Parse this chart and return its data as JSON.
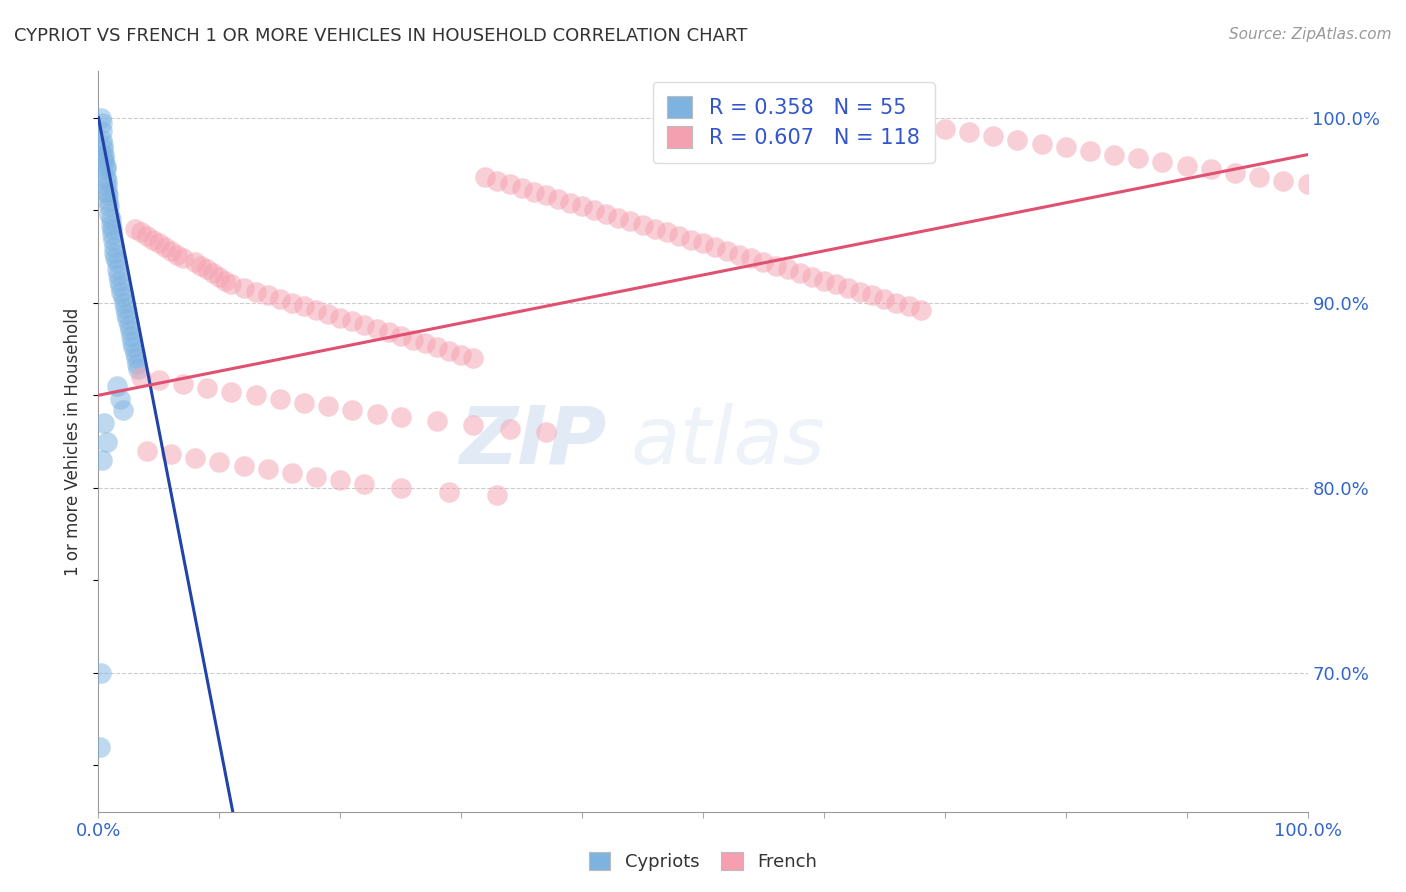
{
  "title": "CYPRIOT VS FRENCH 1 OR MORE VEHICLES IN HOUSEHOLD CORRELATION CHART",
  "source": "Source: ZipAtlas.com",
  "ylabel": "1 or more Vehicles in Household",
  "xmin": 0.0,
  "xmax": 1.0,
  "ymin": 0.625,
  "ymax": 1.025,
  "yticks": [
    0.7,
    0.8,
    0.9,
    1.0
  ],
  "ytick_labels": [
    "70.0%",
    "80.0%",
    "90.0%",
    "100.0%"
  ],
  "xticks": [
    0.0,
    0.1,
    0.2,
    0.3,
    0.4,
    0.5,
    0.6,
    0.7,
    0.8,
    0.9,
    1.0
  ],
  "xtick_labels": [
    "0.0%",
    "",
    "",
    "",
    "",
    "",
    "",
    "",
    "",
    "",
    "100.0%"
  ],
  "cypriot_color": "#7EB3E0",
  "french_color": "#F5A0B0",
  "cypriot_line_color": "#2244AA",
  "french_line_color": "#E05070",
  "cypriot_R": 0.358,
  "cypriot_N": 55,
  "french_R": 0.607,
  "french_N": 118,
  "watermark_zip": "ZIP",
  "watermark_atlas": "atlas",
  "cypriot_x": [
    0.002,
    0.003,
    0.003,
    0.003,
    0.004,
    0.004,
    0.005,
    0.005,
    0.005,
    0.006,
    0.006,
    0.006,
    0.007,
    0.007,
    0.007,
    0.008,
    0.008,
    0.009,
    0.009,
    0.01,
    0.01,
    0.011,
    0.011,
    0.012,
    0.013,
    0.013,
    0.014,
    0.015,
    0.015,
    0.016,
    0.017,
    0.018,
    0.019,
    0.02,
    0.021,
    0.022,
    0.023,
    0.024,
    0.025,
    0.026,
    0.027,
    0.028,
    0.029,
    0.03,
    0.031,
    0.032,
    0.033,
    0.015,
    0.018,
    0.02,
    0.005,
    0.007,
    0.003,
    0.002,
    0.001
  ],
  "cypriot_y": [
    1.0,
    0.997,
    0.993,
    0.988,
    0.985,
    0.983,
    0.98,
    0.978,
    0.976,
    0.974,
    0.972,
    0.968,
    0.966,
    0.963,
    0.96,
    0.958,
    0.955,
    0.952,
    0.948,
    0.945,
    0.942,
    0.94,
    0.937,
    0.934,
    0.93,
    0.927,
    0.924,
    0.922,
    0.918,
    0.915,
    0.912,
    0.909,
    0.906,
    0.903,
    0.9,
    0.897,
    0.894,
    0.891,
    0.888,
    0.885,
    0.882,
    0.879,
    0.876,
    0.873,
    0.87,
    0.867,
    0.864,
    0.855,
    0.848,
    0.842,
    0.835,
    0.825,
    0.815,
    0.7,
    0.66
  ],
  "french_x": [
    0.03,
    0.035,
    0.04,
    0.045,
    0.05,
    0.055,
    0.06,
    0.065,
    0.07,
    0.08,
    0.085,
    0.09,
    0.095,
    0.1,
    0.105,
    0.11,
    0.12,
    0.13,
    0.14,
    0.15,
    0.16,
    0.17,
    0.18,
    0.19,
    0.2,
    0.21,
    0.22,
    0.23,
    0.24,
    0.25,
    0.26,
    0.27,
    0.28,
    0.29,
    0.3,
    0.31,
    0.32,
    0.33,
    0.34,
    0.35,
    0.36,
    0.37,
    0.38,
    0.39,
    0.4,
    0.41,
    0.42,
    0.43,
    0.44,
    0.45,
    0.46,
    0.47,
    0.48,
    0.49,
    0.5,
    0.51,
    0.52,
    0.53,
    0.54,
    0.55,
    0.56,
    0.57,
    0.58,
    0.59,
    0.6,
    0.61,
    0.62,
    0.63,
    0.64,
    0.65,
    0.66,
    0.67,
    0.68,
    0.7,
    0.72,
    0.74,
    0.76,
    0.78,
    0.8,
    0.82,
    0.84,
    0.86,
    0.88,
    0.9,
    0.92,
    0.94,
    0.96,
    0.98,
    1.0,
    0.035,
    0.05,
    0.07,
    0.09,
    0.11,
    0.13,
    0.15,
    0.17,
    0.19,
    0.21,
    0.23,
    0.25,
    0.28,
    0.31,
    0.34,
    0.37,
    0.04,
    0.06,
    0.08,
    0.1,
    0.12,
    0.14,
    0.16,
    0.18,
    0.2,
    0.22,
    0.25,
    0.29,
    0.33
  ],
  "french_y": [
    0.94,
    0.938,
    0.936,
    0.934,
    0.932,
    0.93,
    0.928,
    0.926,
    0.924,
    0.922,
    0.92,
    0.918,
    0.916,
    0.914,
    0.912,
    0.91,
    0.908,
    0.906,
    0.904,
    0.902,
    0.9,
    0.898,
    0.896,
    0.894,
    0.892,
    0.89,
    0.888,
    0.886,
    0.884,
    0.882,
    0.88,
    0.878,
    0.876,
    0.874,
    0.872,
    0.87,
    0.968,
    0.966,
    0.964,
    0.962,
    0.96,
    0.958,
    0.956,
    0.954,
    0.952,
    0.95,
    0.948,
    0.946,
    0.944,
    0.942,
    0.94,
    0.938,
    0.936,
    0.934,
    0.932,
    0.93,
    0.928,
    0.926,
    0.924,
    0.922,
    0.92,
    0.918,
    0.916,
    0.914,
    0.912,
    0.91,
    0.908,
    0.906,
    0.904,
    0.902,
    0.9,
    0.898,
    0.896,
    0.994,
    0.992,
    0.99,
    0.988,
    0.986,
    0.984,
    0.982,
    0.98,
    0.978,
    0.976,
    0.974,
    0.972,
    0.97,
    0.968,
    0.966,
    0.964,
    0.86,
    0.858,
    0.856,
    0.854,
    0.852,
    0.85,
    0.848,
    0.846,
    0.844,
    0.842,
    0.84,
    0.838,
    0.836,
    0.834,
    0.832,
    0.83,
    0.82,
    0.818,
    0.816,
    0.814,
    0.812,
    0.81,
    0.808,
    0.806,
    0.804,
    0.802,
    0.8,
    0.798,
    0.796
  ]
}
